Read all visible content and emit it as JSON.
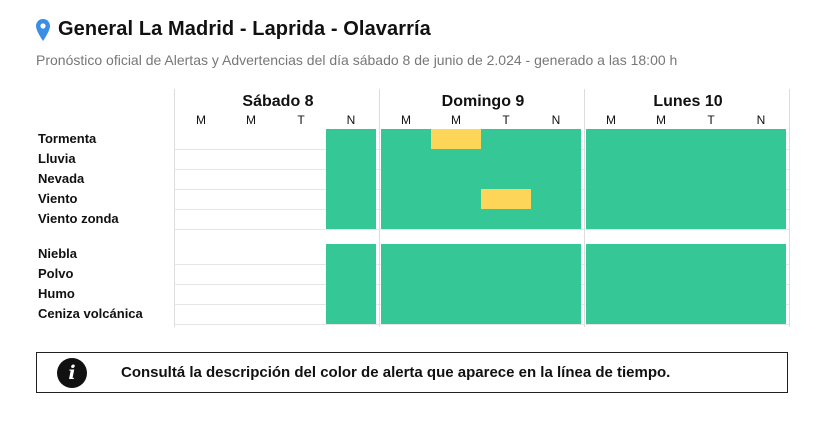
{
  "header": {
    "icon": "location-pin-icon",
    "title": "General La Madrid - Laprida - Olavarría",
    "subtitle": "Pronóstico oficial de Alertas y Advertencias del día sábado 8 de junio de 2.024 - generado a las 18:00 h"
  },
  "days": [
    {
      "label": "Sábado 8",
      "slots": [
        "M",
        "M",
        "T",
        "N"
      ]
    },
    {
      "label": "Domingo 9",
      "slots": [
        "M",
        "M",
        "T",
        "N"
      ]
    },
    {
      "label": "Lunes 10",
      "slots": [
        "M",
        "M",
        "T",
        "N"
      ]
    }
  ],
  "colors": {
    "none": "",
    "green": "#35c896",
    "yellow": "#fdd559"
  },
  "rows": [
    {
      "label": "Tormenta",
      "group": 1,
      "levels": [
        "none",
        "none",
        "none",
        "green",
        "green",
        "yellow",
        "green",
        "green",
        "green",
        "green",
        "green",
        "green"
      ]
    },
    {
      "label": "Lluvia",
      "group": 1,
      "levels": [
        "none",
        "none",
        "none",
        "green",
        "green",
        "green",
        "green",
        "green",
        "green",
        "green",
        "green",
        "green"
      ]
    },
    {
      "label": "Nevada",
      "group": 1,
      "levels": [
        "none",
        "none",
        "none",
        "green",
        "green",
        "green",
        "green",
        "green",
        "green",
        "green",
        "green",
        "green"
      ]
    },
    {
      "label": "Viento",
      "group": 1,
      "levels": [
        "none",
        "none",
        "none",
        "green",
        "green",
        "green",
        "yellow",
        "green",
        "green",
        "green",
        "green",
        "green"
      ]
    },
    {
      "label": "Viento zonda",
      "group": 1,
      "levels": [
        "none",
        "none",
        "none",
        "green",
        "green",
        "green",
        "green",
        "green",
        "green",
        "green",
        "green",
        "green"
      ]
    },
    {
      "label": "Niebla",
      "group": 2,
      "levels": [
        "none",
        "none",
        "none",
        "green",
        "green",
        "green",
        "green",
        "green",
        "green",
        "green",
        "green",
        "green"
      ]
    },
    {
      "label": "Polvo",
      "group": 2,
      "levels": [
        "none",
        "none",
        "none",
        "green",
        "green",
        "green",
        "green",
        "green",
        "green",
        "green",
        "green",
        "green"
      ]
    },
    {
      "label": "Humo",
      "group": 2,
      "levels": [
        "none",
        "none",
        "none",
        "green",
        "green",
        "green",
        "green",
        "green",
        "green",
        "green",
        "green",
        "green"
      ]
    },
    {
      "label": "Ceniza volcánica",
      "group": 2,
      "levels": [
        "none",
        "none",
        "none",
        "green",
        "green",
        "green",
        "green",
        "green",
        "green",
        "green",
        "green",
        "green"
      ]
    }
  ],
  "info": {
    "icon": "info-icon",
    "symbol": "i",
    "text": "Consultá la descripción del color de alerta que aparece en la línea de tiempo."
  }
}
